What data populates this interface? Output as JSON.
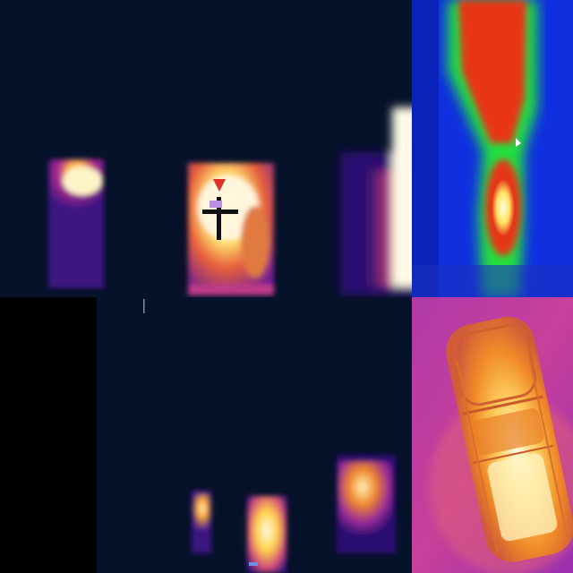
{
  "mosaic": {
    "rows": 2,
    "columns": 2,
    "tiles": [
      {
        "id": "tile-tl",
        "subject": "thermal-building-windows",
        "palette": "ironbow"
      },
      {
        "id": "tile-tr",
        "subject": "thermal-figure-with-hotspot",
        "palette": "rainbow"
      },
      {
        "id": "tile-bl",
        "subject": "thermal-building-windows-dark",
        "palette": "ironbow"
      },
      {
        "id": "tile-br",
        "subject": "thermal-vehicle-top-view",
        "palette": "ironbow"
      }
    ]
  },
  "colors": {
    "night_background": "#06112a",
    "hot_white": "#fff8d8",
    "hot_yellow": "#ffd24a",
    "warm_orange": "#f07a20",
    "warm_magenta": "#c02a9a",
    "cool_purple": "#4a1a8a",
    "rainbow_blue": "#1030e0",
    "rainbow_green": "#20e040",
    "rainbow_red": "#e83418"
  }
}
